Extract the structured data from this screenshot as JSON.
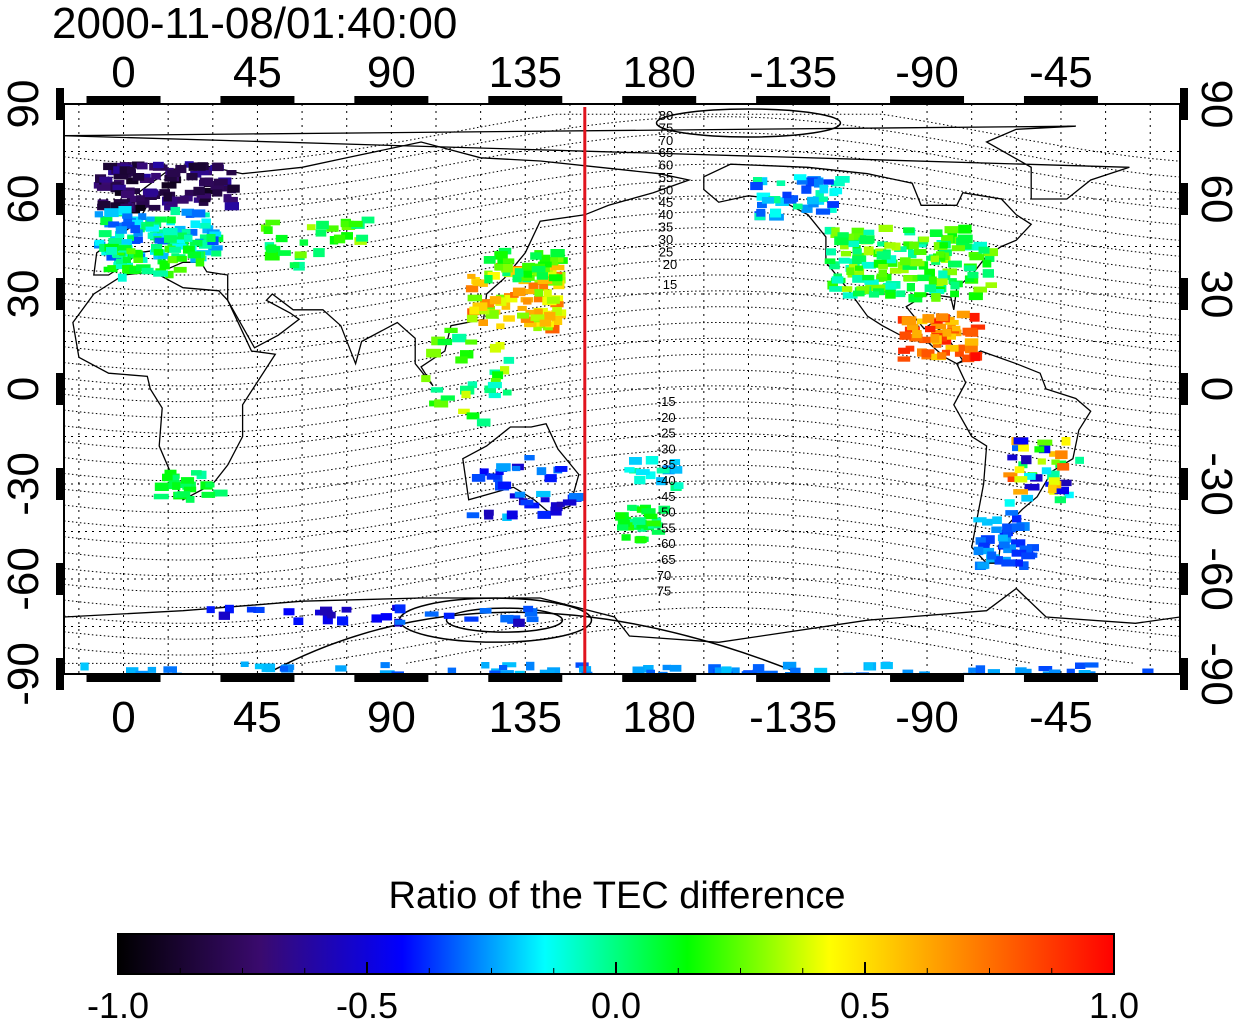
{
  "title": "2000-11-08/01:40:00",
  "map": {
    "lon_ticks_labels": [
      "0",
      "45",
      "90",
      "135",
      "180",
      "-135",
      "-90",
      "-45"
    ],
    "lon_tick_values": [
      0,
      45,
      90,
      135,
      180,
      225,
      270,
      315
    ],
    "lat_ticks_labels": [
      "90",
      "60",
      "30",
      "0",
      "-30",
      "-60",
      "-90"
    ],
    "lat_tick_values": [
      90,
      60,
      30,
      0,
      -30,
      -60,
      -90
    ],
    "lon_range": [
      -20,
      355
    ],
    "lat_range": [
      -90,
      90
    ],
    "grid": true,
    "terminator_lon": 155,
    "terminator_color": "#e0141e",
    "contour_labels_north": [
      "80",
      "75",
      "70",
      "65",
      "60",
      "55",
      "50",
      "45",
      "40",
      "35",
      "30",
      "25",
      "20",
      "15"
    ],
    "contour_labels_south": [
      "-15",
      "-20",
      "-25",
      "-30",
      "-35",
      "-40",
      "-45",
      "-50",
      "-55",
      "-60",
      "-65",
      "70",
      "75"
    ]
  },
  "colorbar": {
    "title": "Ratio of the TEC difference",
    "min": -1.0,
    "max": 1.0,
    "tick_labels": [
      "-1.0",
      "-0.5",
      "0.0",
      "0.5",
      "1.0"
    ],
    "tick_values": [
      -1.0,
      -0.5,
      0.0,
      0.5,
      1.0
    ],
    "colors": [
      "#000000",
      "#3a0a6e",
      "#0000ff",
      "#00ffff",
      "#00ff00",
      "#ffff00",
      "#ff8000",
      "#ff0000"
    ]
  }
}
